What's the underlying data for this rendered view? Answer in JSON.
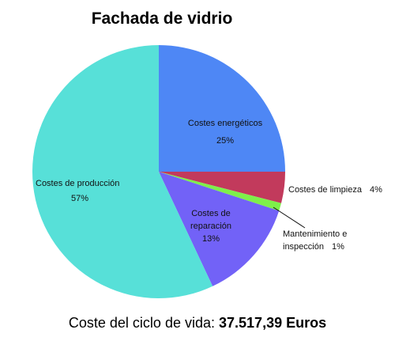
{
  "chart_data": {
    "type": "pie",
    "title": "Fachada de vidrio",
    "categories": [
      "Costes energéticos",
      "Costes de limpieza",
      "Mantenimiento e inspección",
      "Costes de reparación",
      "Costes de producción"
    ],
    "values": [
      25,
      4,
      1,
      13,
      57
    ],
    "value_labels": [
      "25%",
      "4%",
      "1%",
      "13%",
      "57%"
    ],
    "colors": [
      "#4e87f5",
      "#c23a5c",
      "#7ef04a",
      "#7262f7",
      "#57e0d8"
    ],
    "annotation": {
      "label": "Coste del ciclo de vida:",
      "value": "37.517,39 Euros"
    }
  }
}
